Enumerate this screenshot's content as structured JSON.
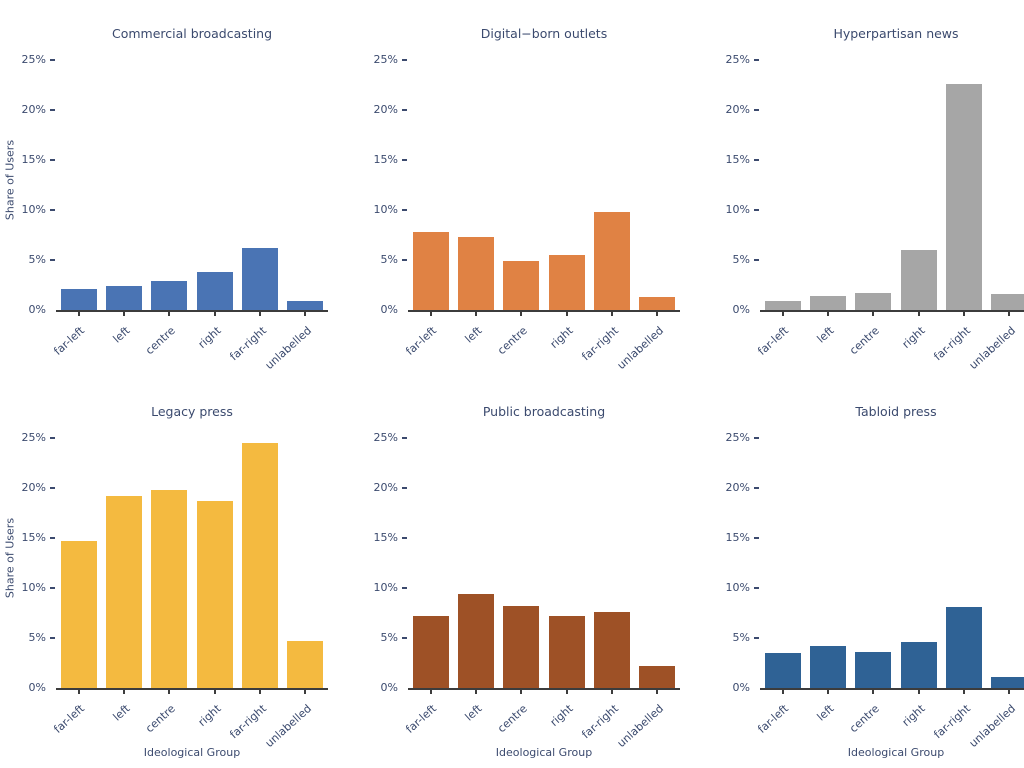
{
  "figure": {
    "background": "#ffffff",
    "text_color": "#3b4a6e",
    "axis_color": "#3c3c3c"
  },
  "chart_data": {
    "type": "bar",
    "categories": [
      "far-left",
      "left",
      "centre",
      "right",
      "far-right",
      "unlabelled"
    ],
    "xlabel": "Ideological Group",
    "ylabel": "Share of Users",
    "ylim": [
      0,
      26
    ],
    "ytick_values": [
      25,
      20,
      15,
      10,
      5,
      0
    ],
    "ytick_labels": [
      "25%",
      "20%",
      "15%",
      "10%",
      "5%",
      "0%"
    ],
    "grid": false,
    "legend": "none",
    "panels": [
      {
        "title": "Commercial broadcasting",
        "color": "#4a74b4",
        "values": [
          2.1,
          2.4,
          2.9,
          3.8,
          6.2,
          0.9
        ],
        "show_ylabel": true,
        "show_xlabel": false
      },
      {
        "title": "Digital−born outlets",
        "color": "#e08244",
        "values": [
          7.8,
          7.3,
          4.9,
          5.5,
          9.8,
          1.3
        ],
        "show_ylabel": false,
        "show_xlabel": false
      },
      {
        "title": "Hyperpartisan news",
        "color": "#a6a6a6",
        "values": [
          0.9,
          1.4,
          1.7,
          6.0,
          22.6,
          1.6
        ],
        "show_ylabel": false,
        "show_xlabel": false
      },
      {
        "title": "Legacy press",
        "color": "#f4ba40",
        "values": [
          14.7,
          19.2,
          19.8,
          18.7,
          24.5,
          4.7
        ],
        "show_ylabel": true,
        "show_xlabel": true
      },
      {
        "title": "Public broadcasting",
        "color": "#9e5126",
        "values": [
          7.2,
          9.4,
          8.2,
          7.2,
          7.6,
          2.2
        ],
        "show_ylabel": false,
        "show_xlabel": true
      },
      {
        "title": "Tabloid press",
        "color": "#2f6295",
        "values": [
          3.5,
          4.2,
          3.6,
          4.6,
          8.1,
          1.1
        ],
        "show_ylabel": false,
        "show_xlabel": true
      }
    ]
  }
}
